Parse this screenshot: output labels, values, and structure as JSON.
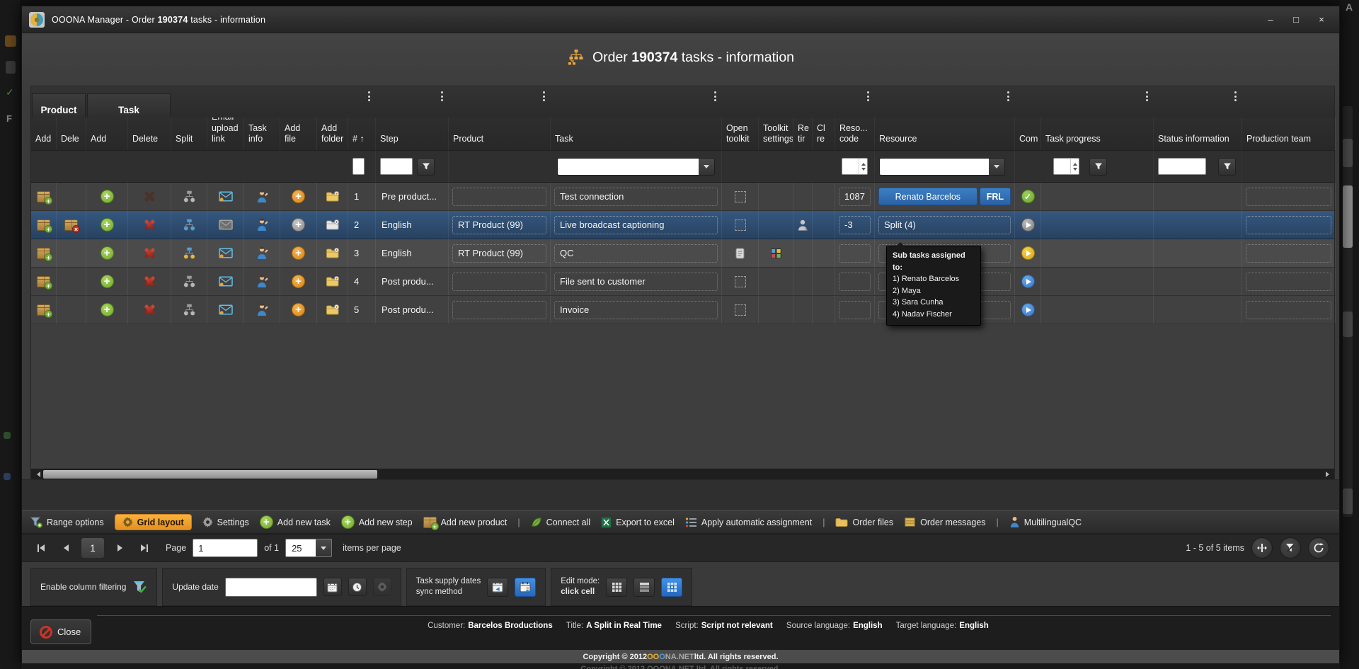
{
  "window": {
    "title_prefix": "OOONA Manager -  Order ",
    "title_order": "190374",
    "title_suffix": " tasks - information",
    "minimize": "–",
    "maximize": "□",
    "close": "×"
  },
  "page_header": {
    "prefix": "Order ",
    "order_no": "190374",
    "suffix": " tasks - information"
  },
  "grid": {
    "group_headers": [
      {
        "label": "Product"
      },
      {
        "label": "Task"
      }
    ],
    "columns": [
      {
        "key": "product_add",
        "label": "Add"
      },
      {
        "key": "product_delete",
        "label": "Dele"
      },
      {
        "key": "task_add",
        "label": "Add"
      },
      {
        "key": "task_delete",
        "label": "Delete"
      },
      {
        "key": "split",
        "label": "Split"
      },
      {
        "key": "email_upload_link",
        "label": "Email upload link"
      },
      {
        "key": "task_info",
        "label": "Task info"
      },
      {
        "key": "add_file",
        "label": "Add file"
      },
      {
        "key": "add_folder",
        "label": "Add folder"
      },
      {
        "key": "num",
        "label": "# ↑",
        "menu": true,
        "filter": "tiny"
      },
      {
        "key": "step",
        "label": "Step",
        "menu": true,
        "filter": "text_button"
      },
      {
        "key": "product",
        "label": "Product",
        "menu": true
      },
      {
        "key": "task",
        "label": "Task",
        "menu": true,
        "filter": "select"
      },
      {
        "key": "open_toolkit",
        "label": "Open toolkit"
      },
      {
        "key": "toolkit_settings",
        "label": "Toolkit settings"
      },
      {
        "key": "re",
        "label": "Re tir"
      },
      {
        "key": "cl",
        "label": "Cl re"
      },
      {
        "key": "reso_code",
        "label": "Reso... code",
        "menu": true,
        "filter": "number"
      },
      {
        "key": "resource",
        "label": "Resource",
        "menu": true,
        "filter": "select"
      },
      {
        "key": "com",
        "label": "Com"
      },
      {
        "key": "task_progress",
        "label": "Task progress",
        "menu": true,
        "filter": "number_button"
      },
      {
        "key": "status_information",
        "label": "Status information",
        "menu": true,
        "filter": "text_button"
      },
      {
        "key": "production_team",
        "label": "Production team"
      }
    ],
    "rows": [
      {
        "num": "1",
        "step": "Pre product...",
        "product": "",
        "task": "Test connection",
        "reso_code": "1087",
        "resource": {
          "badges": [
            "Renato Barcelos",
            "FRL"
          ]
        },
        "com": "check-green",
        "selected": false,
        "alt": false,
        "icons": {
          "product_delete": false,
          "task_delete": "disabled",
          "split": "gray",
          "email": "blue",
          "add_file": "orange",
          "folder": "yellow",
          "open_toolkit": "checkbox",
          "toolkit_settings": "",
          "re": ""
        }
      },
      {
        "num": "2",
        "step": "English",
        "product": "RT Product (99)",
        "task": "Live broadcast captioning",
        "reso_code": "-3",
        "resource": {
          "box": "Split (4)"
        },
        "com": "play-gray",
        "selected": true,
        "alt": false,
        "icons": {
          "product_delete": true,
          "task_delete": "red",
          "split": "blue",
          "email": "gray",
          "add_file": "gray",
          "folder": "white",
          "open_toolkit": "checkbox",
          "toolkit_settings": "",
          "re": "bust"
        }
      },
      {
        "num": "3",
        "step": "English",
        "product": "RT Product (99)",
        "task": "QC",
        "reso_code": "",
        "resource": {
          "box": ""
        },
        "com": "play-yellow",
        "selected": false,
        "alt": true,
        "icons": {
          "product_delete": false,
          "task_delete": "red",
          "split": "yellow",
          "email": "blue",
          "add_file": "orange",
          "folder": "yellow",
          "open_toolkit": "doc",
          "toolkit_settings": "palette",
          "re": ""
        }
      },
      {
        "num": "4",
        "step": "Post produ...",
        "product": "",
        "task": "File sent to customer",
        "reso_code": "",
        "resource": {
          "box": ""
        },
        "com": "play-blue",
        "selected": false,
        "alt": false,
        "icons": {
          "product_delete": false,
          "task_delete": "red",
          "split": "gray",
          "email": "blue",
          "add_file": "orange",
          "folder": "yellow",
          "open_toolkit": "checkbox",
          "toolkit_settings": "",
          "re": ""
        }
      },
      {
        "num": "5",
        "step": "Post produ...",
        "product": "",
        "task": "Invoice",
        "reso_code": "",
        "resource": {
          "box": ""
        },
        "com": "play-blue",
        "selected": false,
        "alt": false,
        "icons": {
          "product_delete": false,
          "task_delete": "red",
          "split": "gray",
          "email": "blue",
          "add_file": "orange",
          "folder": "yellow",
          "open_toolkit": "checkbox",
          "toolkit_settings": "",
          "re": ""
        }
      }
    ]
  },
  "tooltip": {
    "title": "Sub tasks assigned to:",
    "items": [
      "1) Renato Barcelos",
      "2) Maya",
      "3) Sara Cunha",
      "4) Nadav Fischer"
    ]
  },
  "toolbar": {
    "items": [
      {
        "label": "Range options"
      },
      {
        "label": "Grid layout",
        "active": true
      },
      {
        "label": "Settings"
      },
      {
        "label": "Add new task"
      },
      {
        "label": "Add new step"
      },
      {
        "label": "Add new product"
      },
      {
        "label": "Connect all"
      },
      {
        "label": "Export to excel"
      },
      {
        "label": "Apply automatic assignment"
      },
      {
        "label": "Order files"
      },
      {
        "label": "Order messages"
      },
      {
        "label": "MultilingualQC"
      }
    ]
  },
  "pager": {
    "current_page": "1",
    "page_label": "Page",
    "page_value": "1",
    "of_label": "of 1",
    "per_page_value": "25",
    "per_page_label": "items per page",
    "range_label": "1 - 5 of 5 items"
  },
  "controls": {
    "filtering_label": "Enable column filtering",
    "update_date_label": "Update date",
    "update_date_value": "",
    "sync_label_line1": "Task supply dates",
    "sync_label_line2": "sync method",
    "edit_mode_label": "Edit mode:",
    "edit_mode_value": "click cell"
  },
  "footer": {
    "close_label": "Close",
    "fields": [
      {
        "label": "Customer:",
        "value": "Barcelos Broductions"
      },
      {
        "label": "Title:",
        "value": "A Split in Real Time"
      },
      {
        "label": "Script:",
        "value": "Script not relevant"
      },
      {
        "label": "Source language:",
        "value": "English"
      },
      {
        "label": "Target language:",
        "value": "English"
      }
    ]
  },
  "copyright": {
    "prefix": "Copyright © 2012 ",
    "brand_p1": "OO",
    "brand_p2": "O",
    "brand_p3": "NA.NET",
    "suffix": " ltd. All rights reserved.",
    "full": "Copyright © 2012 OOONA.NET ltd. All rights reserved."
  },
  "colors": {
    "accent_orange": "#f0a63c",
    "selection_blue": "#2f4f78",
    "badge_blue": "#2b6cb8",
    "active_blue": "#2e7fd9",
    "success_green": "#7ab33c",
    "danger_red": "#b8352a",
    "warning_yellow": "#e8c227"
  }
}
